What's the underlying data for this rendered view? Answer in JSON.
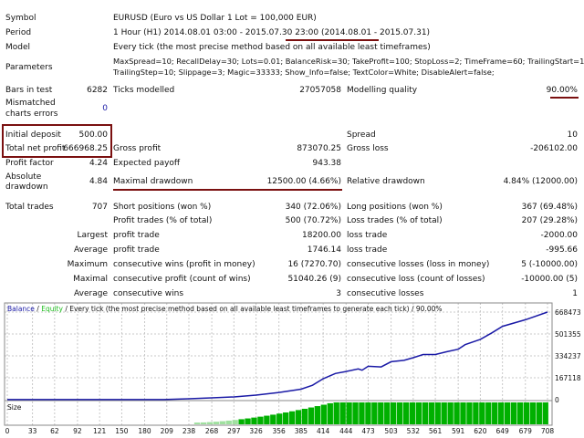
{
  "report": {
    "symbol": {
      "label": "Symbol",
      "value": "EURUSD (Euro vs US Dollar 1 Lot = 100,000 EUR)"
    },
    "period": {
      "label": "Period",
      "value": "1 Hour (H1) 2014.08.01 03:00 - 2015.07.30 23:00",
      "range": "(2014.08.01 - 2015.07.31)"
    },
    "model": {
      "label": "Model",
      "value": "Every tick (the most precise method based on all available least timeframes)"
    },
    "parameters": {
      "label": "Parameters",
      "line1": "MaxSpread=10; RecallDelay=30; Lots=0.01; BalanceRisk=30; TakeProfit=100; StopLoss=2; TimeFrame=60; TrailingStart=10;",
      "line2": "TrailingStep=10; Slippage=3; Magic=33333; Show_Info=false; TextColor=White; DisableAlert=false;"
    },
    "bars_in_test": {
      "label": "Bars in test",
      "value": "6282"
    },
    "ticks_modelled": {
      "label": "Ticks modelled",
      "value": "27057058"
    },
    "modelling_quality": {
      "label": "Modelling quality",
      "value": "90.00%"
    },
    "mismatched": {
      "label1": "Mismatched",
      "label2": "charts errors",
      "value": "0"
    },
    "initial_deposit": {
      "label": "Initial deposit",
      "value": "500.00"
    },
    "spread": {
      "label": "Spread",
      "value": "10"
    },
    "total_net_profit": {
      "label": "Total net profit",
      "value": "666968.25"
    },
    "gross_profit": {
      "label": "Gross profit",
      "value": "873070.25"
    },
    "gross_loss": {
      "label": "Gross loss",
      "value": "-206102.00"
    },
    "profit_factor": {
      "label": "Profit factor",
      "value": "4.24"
    },
    "expected_payoff": {
      "label": "Expected payoff",
      "value": "943.38"
    },
    "absolute_drawdown": {
      "label1": "Absolute",
      "label2": "drawdown",
      "value": "4.84"
    },
    "maximal_drawdown": {
      "label": "Maximal drawdown",
      "value": "12500.00 (4.66%)"
    },
    "relative_drawdown": {
      "label": "Relative drawdown",
      "value": "4.84% (12000.00)"
    },
    "total_trades": {
      "label": "Total trades",
      "value": "707"
    },
    "short_positions": {
      "label": "Short positions (won %)",
      "value": "340 (72.06%)"
    },
    "long_positions": {
      "label": "Long positions (won %)",
      "value": "367 (69.48%)"
    },
    "profit_trades": {
      "label": "Profit trades (% of total)",
      "value": "500 (70.72%)"
    },
    "loss_trades": {
      "label": "Loss trades (% of total)",
      "value": "207 (29.28%)"
    },
    "largest": {
      "label": "Largest",
      "profit_label": "profit trade",
      "profit": "18200.00",
      "loss_label": "loss trade",
      "loss": "-2000.00"
    },
    "average": {
      "label": "Average",
      "profit_label": "profit trade",
      "profit": "1746.14",
      "loss_label": "loss trade",
      "loss": "-995.66"
    },
    "maximum": {
      "label": "Maximum",
      "wins_label": "consecutive wins (profit in money)",
      "wins": "16 (7270.70)",
      "losses_label": "consecutive losses (loss in money)",
      "losses": "5 (-10000.00)"
    },
    "maximal": {
      "label": "Maximal",
      "profit_label": "consecutive profit (count of wins)",
      "profit": "51040.26 (9)",
      "loss_label": "consecutive loss (count of losses)",
      "loss": "-10000.00 (5)"
    },
    "avg_consecutive": {
      "label": "Average",
      "wins_label": "consecutive wins",
      "wins": "3",
      "losses_label": "consecutive losses",
      "losses": "1"
    }
  },
  "chart_data": {
    "type": "line",
    "legend": {
      "balance": "Balance",
      "sep1": " / ",
      "equity": "Equity",
      "desc": " / Every tick (the most precise method based on all available least timeframes to generate each tick) / 90.00%"
    },
    "size_label": "Size",
    "x": [
      0,
      205,
      238,
      268,
      297,
      326,
      356,
      385,
      400,
      414,
      430,
      444,
      460,
      465,
      473,
      490,
      503,
      520,
      532,
      545,
      561,
      575,
      591,
      600,
      620,
      635,
      649,
      679,
      708
    ],
    "balance": [
      500,
      500,
      7000,
      14000,
      21000,
      35000,
      55000,
      80000,
      110000,
      160000,
      200000,
      215000,
      235000,
      225000,
      255000,
      250000,
      290000,
      300000,
      320000,
      345000,
      345000,
      365000,
      385000,
      420000,
      460000,
      510000,
      560000,
      610000,
      668473
    ],
    "ylim": [
      0,
      668473
    ],
    "y_ticks": [
      "0",
      "167118",
      "334237",
      "501355",
      "668473"
    ],
    "y_tick_values": [
      0,
      167118,
      334237,
      501355,
      668473
    ],
    "x_ticks": [
      "0",
      "33",
      "62",
      "92",
      "121",
      "150",
      "180",
      "209",
      "238",
      "268",
      "297",
      "326",
      "356",
      "385",
      "414",
      "444",
      "473",
      "503",
      "532",
      "561",
      "591",
      "620",
      "649",
      "679",
      "708"
    ],
    "xlim": [
      0,
      708
    ],
    "size_start": 245,
    "size_full": 424,
    "colors": {
      "balance": "#1a1aa6",
      "equity": "#1fbf1f",
      "size": "#00b000",
      "grid": "#c8c8c8",
      "axis": "#888888"
    }
  }
}
